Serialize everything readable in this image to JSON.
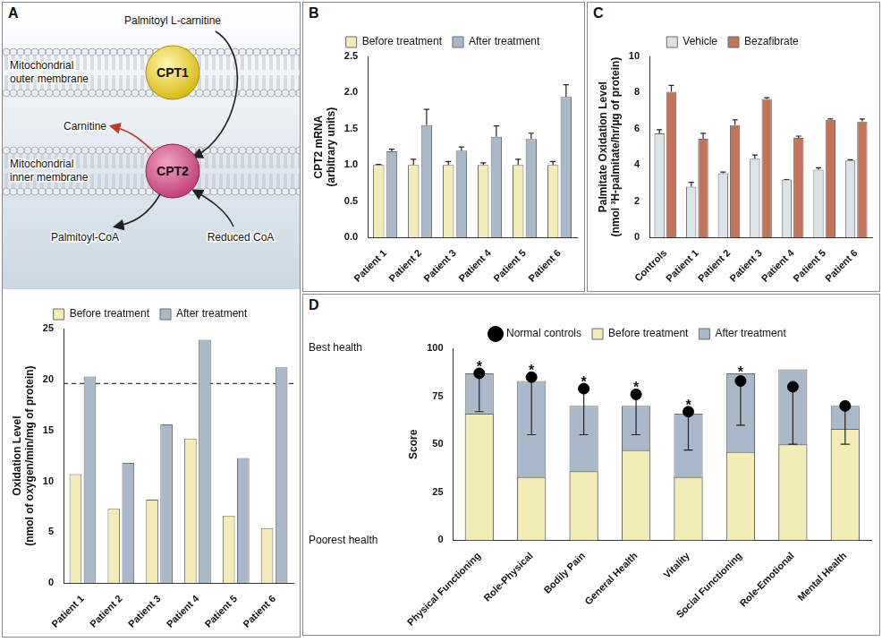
{
  "diagram": {
    "panel": "A",
    "labels": {
      "substrate": "Palmitoyl L-carnitine",
      "outer_membrane": "Mitochondrial outer membrane",
      "inner_membrane": "Mitochondrial inner membrane",
      "enzyme_outer": "CPT1",
      "enzyme_inner": "CPT2",
      "released": "Carnitine",
      "product": "Palmitoyl-CoA",
      "cofactor": "Reduced CoA"
    }
  },
  "chart_data": [
    {
      "type": "bar",
      "y_label": "Oxidation Level (nmol of oxygen/min/mg of protein)",
      "categories": [
        "Patient 1",
        "Patient 2",
        "Patient 3",
        "Patient 4",
        "Patient 5",
        "Patient 6"
      ],
      "series": [
        {
          "name": "Before treatment",
          "color": "#f3ecb7",
          "values": [
            10.7,
            7.3,
            8.2,
            14.2,
            6.6,
            5.4
          ]
        },
        {
          "name": "After treatment",
          "color": "#a9b9c9",
          "values": [
            20.3,
            11.8,
            15.6,
            23.9,
            12.3,
            21.2
          ]
        }
      ],
      "ylim": [
        0,
        25
      ],
      "yticks": [
        0,
        5,
        10,
        15,
        20,
        25
      ],
      "grid": false,
      "legend": "top",
      "annotations": [
        {
          "y": 19.6,
          "line_style": "dashed"
        }
      ]
    },
    {
      "panel": "B",
      "type": "bar",
      "y_label": "CPT2 mRNA (arbitrary units)",
      "categories": [
        "Patient 1",
        "Patient 2",
        "Patient 3",
        "Patient 4",
        "Patient 5",
        "Patient 6"
      ],
      "series": [
        {
          "name": "Before treatment",
          "color": "#f3ecb7",
          "values": [
            1.0,
            1.0,
            1.0,
            1.0,
            1.0,
            1.0
          ],
          "errors": [
            0.01,
            0.08,
            0.05,
            0.03,
            0.08,
            0.05
          ]
        },
        {
          "name": "After treatment",
          "color": "#a9b9c9",
          "values": [
            1.19,
            1.55,
            1.2,
            1.39,
            1.36,
            1.94
          ],
          "errors": [
            0.03,
            0.22,
            0.05,
            0.15,
            0.08,
            0.17
          ]
        }
      ],
      "ylim": [
        0,
        2.5
      ],
      "yticks": [
        {
          "value": 0,
          "label": "0.0"
        },
        0.5,
        {
          "value": 1,
          "label": "1.0"
        },
        1.5,
        {
          "value": 2,
          "label": "2.0"
        },
        2.5
      ],
      "grid": false,
      "legend": "top"
    },
    {
      "panel": "C",
      "type": "bar",
      "y_label": "Palmitate Oxidation Level (nmol ³H-palmitate/hr/µg of protein)",
      "categories": [
        "Controls",
        "Patient 1",
        "Patient 2",
        "Patient 3",
        "Patient 4",
        "Patient 5",
        "Patient 6"
      ],
      "series": [
        {
          "name": "Vehicle",
          "color": "#dde2e8",
          "values": [
            5.75,
            2.8,
            3.55,
            4.35,
            3.2,
            3.75,
            4.25
          ],
          "errors": [
            0.2,
            0.25,
            0.07,
            0.2,
            0,
            0.1,
            0.05
          ]
        },
        {
          "name": "Bezafibrate",
          "color": "#c27358",
          "values": [
            8.05,
            5.45,
            6.2,
            7.65,
            5.5,
            6.5,
            6.4
          ],
          "errors": [
            0.35,
            0.3,
            0.3,
            0.07,
            0.1,
            0.05,
            0.15
          ]
        }
      ],
      "ylim": [
        0,
        10
      ],
      "yticks": [
        0,
        2,
        4,
        6,
        8,
        10
      ],
      "grid": false,
      "legend": "top"
    },
    {
      "panel": "D",
      "type": "bar",
      "y_label": "Score",
      "categories": [
        "Physical Functioning",
        "Role-Physical",
        "Bodily Pain",
        "General Health",
        "Vitality",
        "Social Functioning",
        "Role-Emotional",
        "Mental Health"
      ],
      "series": [
        {
          "name": "Before treatment",
          "color": "#f3ecb7",
          "values": [
            66,
            33,
            36,
            47,
            33,
            46,
            50,
            58
          ]
        },
        {
          "name": "After treatment",
          "color": "#a9b9c9",
          "values": [
            87,
            83,
            70,
            70,
            66,
            87,
            89,
            70
          ]
        },
        {
          "name": "Normal controls",
          "type": "line",
          "marker": "circle",
          "line_style": "none",
          "color": "#000000",
          "values": [
            87,
            85,
            79,
            76,
            67,
            83,
            80,
            70
          ],
          "errors": [
            20,
            30,
            24,
            21,
            20,
            23,
            30,
            20
          ]
        }
      ],
      "ylim": [
        0,
        100
      ],
      "yticks": [
        0,
        25,
        50,
        75,
        100
      ],
      "grid": false,
      "legend": "top",
      "annotations": [
        {
          "y": 100,
          "text": "Best health"
        },
        {
          "y": 0,
          "text": "Poorest health"
        },
        {
          "category": "Physical Functioning",
          "text": "*"
        },
        {
          "category": "Role-Physical",
          "text": "*"
        },
        {
          "category": "Bodily Pain",
          "text": "*"
        },
        {
          "category": "General Health",
          "text": "*"
        },
        {
          "category": "Vitality",
          "text": "*"
        },
        {
          "category": "Social Functioning",
          "text": "*"
        }
      ]
    }
  ]
}
